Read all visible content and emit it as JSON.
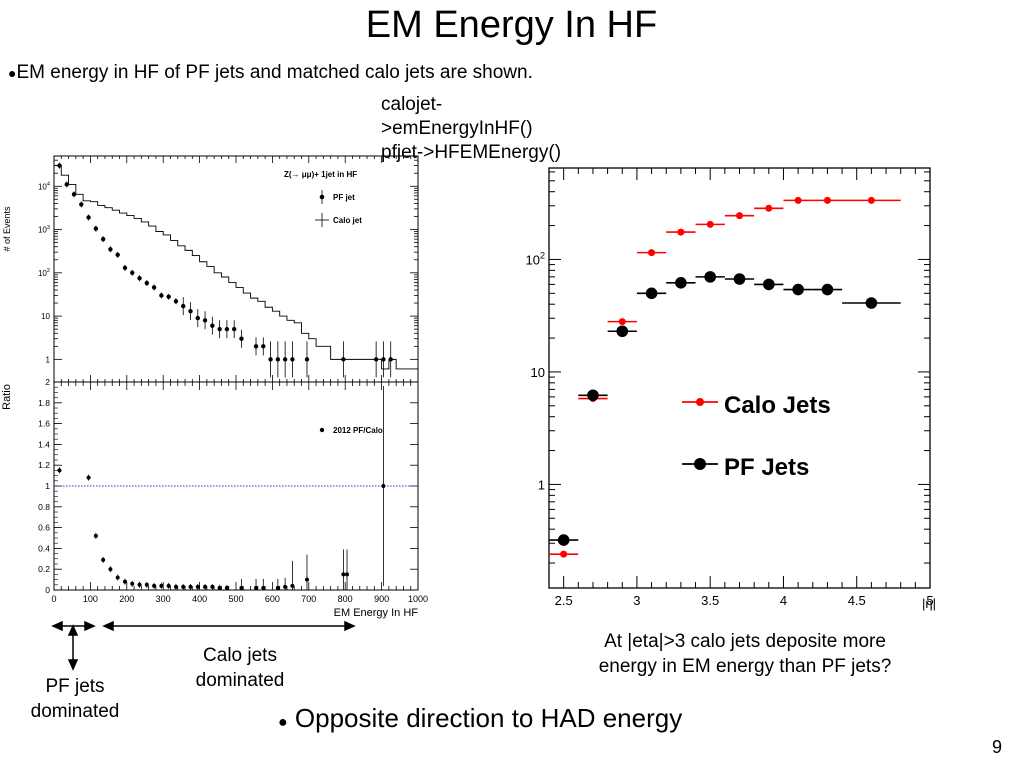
{
  "slide": {
    "title": "EM Energy In HF",
    "bullet1": "EM energy in HF of PF jets and matched calo jets are shown.",
    "note_lines": [
      "calojet-",
      ">emEnergyInHF()",
      "pfjet->HFEMEnergy()"
    ],
    "eta_note_lines": [
      "At |eta|>3 calo jets deposite more",
      "energy in EM energy than PF jets?"
    ],
    "calo_dominated_lines": [
      "Calo jets",
      "dominated"
    ],
    "pf_dominated_lines": [
      "PF jets",
      "dominated"
    ],
    "bullet2": "Opposite direction to HAD energy",
    "page_number": "9"
  },
  "chart_data": [
    {
      "type": "scatter",
      "panel": "top",
      "ylabel": "# of Events",
      "yscale": "log",
      "xlim": [
        0,
        1000
      ],
      "ylim": [
        0.3,
        50000
      ],
      "ytick_labels": [
        {
          "v": 10000,
          "base": "10",
          "exp": "4"
        },
        {
          "v": 1000,
          "base": "10",
          "exp": "3"
        },
        {
          "v": 100,
          "base": "10",
          "exp": "2"
        },
        {
          "v": 10,
          "base": "10",
          "exp": ""
        },
        {
          "v": 1,
          "base": "1",
          "exp": ""
        }
      ],
      "legend_title": "Z(→ μμ)+ 1jet in HF",
      "series": [
        {
          "name": "PF jet",
          "style": "points",
          "points": [
            [
              15,
              30000
            ],
            [
              35,
              11000
            ],
            [
              55,
              6500
            ],
            [
              75,
              3800
            ],
            [
              95,
              1900
            ],
            [
              115,
              1050
            ],
            [
              135,
              600
            ],
            [
              155,
              350
            ],
            [
              175,
              260
            ],
            [
              195,
              130
            ],
            [
              215,
              100
            ],
            [
              235,
              75
            ],
            [
              255,
              58
            ],
            [
              275,
              46
            ],
            [
              295,
              30
            ],
            [
              315,
              28
            ],
            [
              335,
              22
            ],
            [
              355,
              17
            ],
            [
              375,
              13
            ],
            [
              395,
              9
            ],
            [
              415,
              8
            ],
            [
              435,
              6
            ],
            [
              455,
              5
            ],
            [
              475,
              5
            ],
            [
              495,
              5
            ],
            [
              515,
              3
            ],
            [
              555,
              2
            ],
            [
              575,
              2
            ],
            [
              595,
              1
            ],
            [
              615,
              1
            ],
            [
              635,
              1
            ],
            [
              655,
              1
            ],
            [
              695,
              1
            ],
            [
              795,
              1
            ],
            [
              885,
              1
            ],
            [
              905,
              1
            ],
            [
              925,
              1
            ]
          ]
        },
        {
          "name": "Calo jet",
          "style": "step",
          "points": [
            [
              0,
              30000
            ],
            [
              20,
              18000
            ],
            [
              40,
              11000
            ],
            [
              60,
              6500
            ],
            [
              80,
              4600
            ],
            [
              100,
              4400
            ],
            [
              120,
              3600
            ],
            [
              140,
              3200
            ],
            [
              160,
              2800
            ],
            [
              180,
              2400
            ],
            [
              200,
              2100
            ],
            [
              220,
              1800
            ],
            [
              240,
              1500
            ],
            [
              260,
              1200
            ],
            [
              280,
              900
            ],
            [
              300,
              750
            ],
            [
              320,
              560
            ],
            [
              340,
              420
            ],
            [
              360,
              330
            ],
            [
              380,
              250
            ],
            [
              400,
              180
            ],
            [
              420,
              140
            ],
            [
              440,
              100
            ],
            [
              460,
              80
            ],
            [
              480,
              60
            ],
            [
              500,
              46
            ],
            [
              520,
              34
            ],
            [
              540,
              26
            ],
            [
              560,
              22
            ],
            [
              580,
              16
            ],
            [
              600,
              13
            ],
            [
              620,
              10
            ],
            [
              640,
              8
            ],
            [
              660,
              7
            ],
            [
              680,
              4
            ],
            [
              700,
              3
            ],
            [
              720,
              2
            ],
            [
              740,
              2
            ],
            [
              760,
              1
            ],
            [
              780,
              1
            ],
            [
              800,
              1
            ],
            [
              820,
              1
            ],
            [
              840,
              1
            ],
            [
              860,
              1
            ],
            [
              880,
              1
            ],
            [
              900,
              0.6
            ],
            [
              920,
              1
            ],
            [
              940,
              0.6
            ],
            [
              960,
              0.6
            ],
            [
              980,
              0.6
            ],
            [
              1000,
              0.6
            ]
          ]
        }
      ]
    },
    {
      "type": "scatter",
      "panel": "bottom",
      "xlabel": "EM Energy In HF",
      "ylabel": "Ratio",
      "xlim": [
        0,
        1000
      ],
      "ylim": [
        0,
        2
      ],
      "xticks": [
        0,
        100,
        200,
        300,
        400,
        500,
        600,
        700,
        800,
        900,
        1000
      ],
      "yticks": [
        0,
        0.2,
        0.4,
        0.6,
        0.8,
        1,
        1.2,
        1.4,
        1.6,
        1.8,
        2
      ],
      "reference_line": 1,
      "series": [
        {
          "name": "2012 PF/Calo",
          "points": [
            [
              15,
              1.15
            ],
            [
              95,
              1.08
            ],
            [
              115,
              0.52
            ],
            [
              135,
              0.29
            ],
            [
              155,
              0.2
            ],
            [
              175,
              0.12
            ],
            [
              195,
              0.08
            ],
            [
              215,
              0.06
            ],
            [
              235,
              0.05
            ],
            [
              255,
              0.05
            ],
            [
              275,
              0.04
            ],
            [
              295,
              0.04
            ],
            [
              315,
              0.04
            ],
            [
              335,
              0.03
            ],
            [
              355,
              0.03
            ],
            [
              375,
              0.03
            ],
            [
              395,
              0.03
            ],
            [
              415,
              0.03
            ],
            [
              435,
              0.03
            ],
            [
              455,
              0.02
            ],
            [
              475,
              0.02
            ],
            [
              515,
              0.02
            ],
            [
              555,
              0.02
            ],
            [
              575,
              0.02
            ],
            [
              615,
              0.02
            ],
            [
              635,
              0.03
            ],
            [
              655,
              0.04
            ],
            [
              695,
              0.1
            ],
            [
              795,
              0.15
            ],
            [
              805,
              0.15
            ],
            [
              905,
              1.0
            ]
          ]
        }
      ]
    },
    {
      "type": "scatter",
      "panel": "right",
      "xlabel": "|η|",
      "yscale": "log",
      "xlim": [
        2.4,
        5
      ],
      "ylim": [
        0.12,
        650
      ],
      "xticks": [
        2.5,
        3,
        3.5,
        4,
        4.5,
        5
      ],
      "ytick_labels": [
        {
          "v": 100,
          "base": "10",
          "exp": "2"
        },
        {
          "v": 10,
          "base": "10",
          "exp": ""
        },
        {
          "v": 1,
          "base": "1",
          "exp": ""
        }
      ],
      "series": [
        {
          "name": "Calo Jets",
          "color": "#ff0000",
          "points": [
            [
              2.5,
              0.24
            ],
            [
              2.7,
              5.8
            ],
            [
              2.9,
              28
            ],
            [
              3.1,
              115
            ],
            [
              3.3,
              175
            ],
            [
              3.5,
              205
            ],
            [
              3.7,
              245
            ],
            [
              3.9,
              285
            ],
            [
              4.1,
              335
            ],
            [
              4.3,
              335
            ],
            [
              4.6,
              335
            ]
          ],
          "xerr": [
            0.1,
            0.1,
            0.1,
            0.1,
            0.1,
            0.1,
            0.1,
            0.1,
            0.1,
            0.1,
            0.2
          ]
        },
        {
          "name": "PF Jets",
          "color": "#000000",
          "points": [
            [
              2.5,
              0.32
            ],
            [
              2.7,
              6.2
            ],
            [
              2.9,
              23
            ],
            [
              3.1,
              50
            ],
            [
              3.3,
              62
            ],
            [
              3.5,
              70
            ],
            [
              3.7,
              67
            ],
            [
              3.9,
              60
            ],
            [
              4.1,
              54
            ],
            [
              4.3,
              54
            ],
            [
              4.6,
              41
            ]
          ],
          "xerr": [
            0.1,
            0.1,
            0.1,
            0.1,
            0.1,
            0.1,
            0.1,
            0.1,
            0.1,
            0.1,
            0.2
          ]
        }
      ]
    }
  ]
}
